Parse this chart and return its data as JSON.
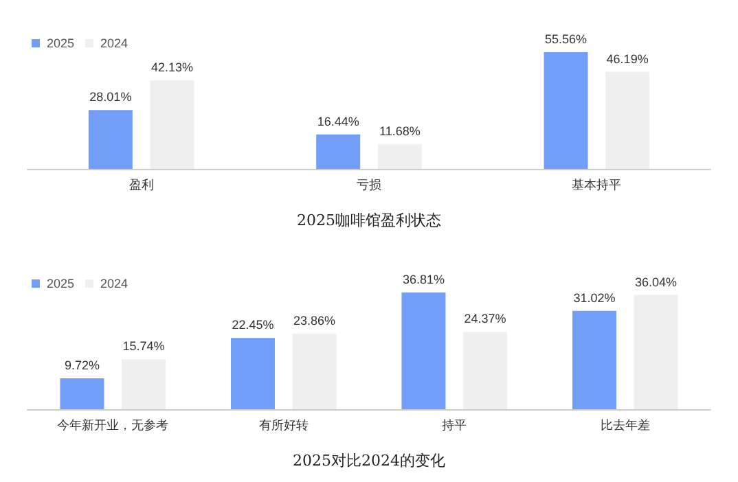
{
  "chart_data": [
    {
      "type": "bar",
      "title": "2025咖啡馆盈利状态",
      "categories": [
        "盈利",
        "亏损",
        "基本持平"
      ],
      "series": [
        {
          "name": "2025",
          "color": "#739ef7",
          "values": [
            28.01,
            16.44,
            55.56
          ],
          "value_labels": [
            "28.01%",
            "16.44%",
            "55.56%"
          ]
        },
        {
          "name": "2024",
          "color": "#efefef",
          "values": [
            42.13,
            11.68,
            46.19
          ],
          "value_labels": [
            "42.13%",
            "11.68%",
            "46.19%"
          ]
        }
      ],
      "legend": "top left"
    },
    {
      "type": "bar",
      "title": "2025对比2024的变化",
      "categories": [
        "今年新开业，无参考",
        "有所好转",
        "持平",
        "比去年差"
      ],
      "series": [
        {
          "name": "2025",
          "color": "#739ef7",
          "values": [
            9.72,
            22.45,
            36.81,
            31.02
          ],
          "value_labels": [
            "9.72%",
            "22.45%",
            "36.81%",
            "31.02%"
          ]
        },
        {
          "name": "2024",
          "color": "#efefef",
          "values": [
            15.74,
            23.86,
            24.37,
            36.04
          ],
          "value_labels": [
            "15.74%",
            "23.86%",
            "24.37%",
            "36.04%"
          ]
        }
      ],
      "legend": "top left"
    }
  ]
}
